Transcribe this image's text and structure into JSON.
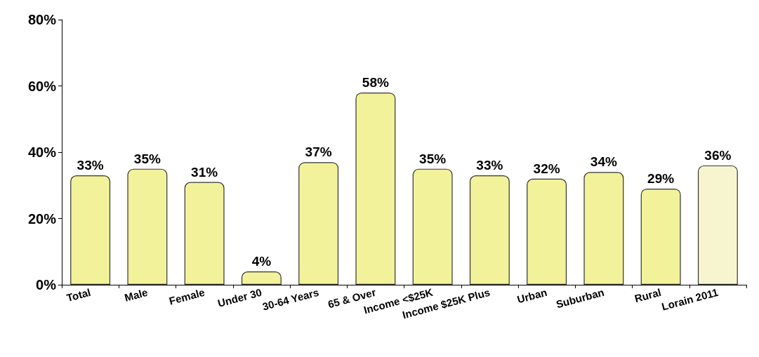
{
  "chart_data": {
    "type": "bar",
    "categories": [
      "Total",
      "Male",
      "Female",
      "Under 30",
      "30-64 Years",
      "65 & Over",
      "Income <$25K",
      "Income $25K Plus",
      "Urban",
      "Suburban",
      "Rural",
      "Lorain 2011"
    ],
    "values": [
      33,
      35,
      31,
      4,
      37,
      58,
      35,
      33,
      32,
      34,
      29,
      36
    ],
    "colors": [
      "#f2f29a",
      "#f2f29a",
      "#f2f29a",
      "#f2f29a",
      "#f2f29a",
      "#f2f29a",
      "#f2f29a",
      "#f2f29a",
      "#f2f29a",
      "#f2f29a",
      "#f2f29a",
      "#f7f5cf"
    ],
    "ylim": [
      0,
      80
    ],
    "yticks": [
      {
        "value": 0,
        "label": "0%"
      },
      {
        "value": 20,
        "label": "20%"
      },
      {
        "value": 40,
        "label": "40%"
      },
      {
        "value": 60,
        "label": "60%"
      },
      {
        "value": 80,
        "label": "80%"
      }
    ],
    "value_labels": [
      "33%",
      "35%",
      "31%",
      "4%",
      "37%",
      "58%",
      "35%",
      "33%",
      "32%",
      "34%",
      "29%",
      "36%"
    ],
    "grid": false
  }
}
